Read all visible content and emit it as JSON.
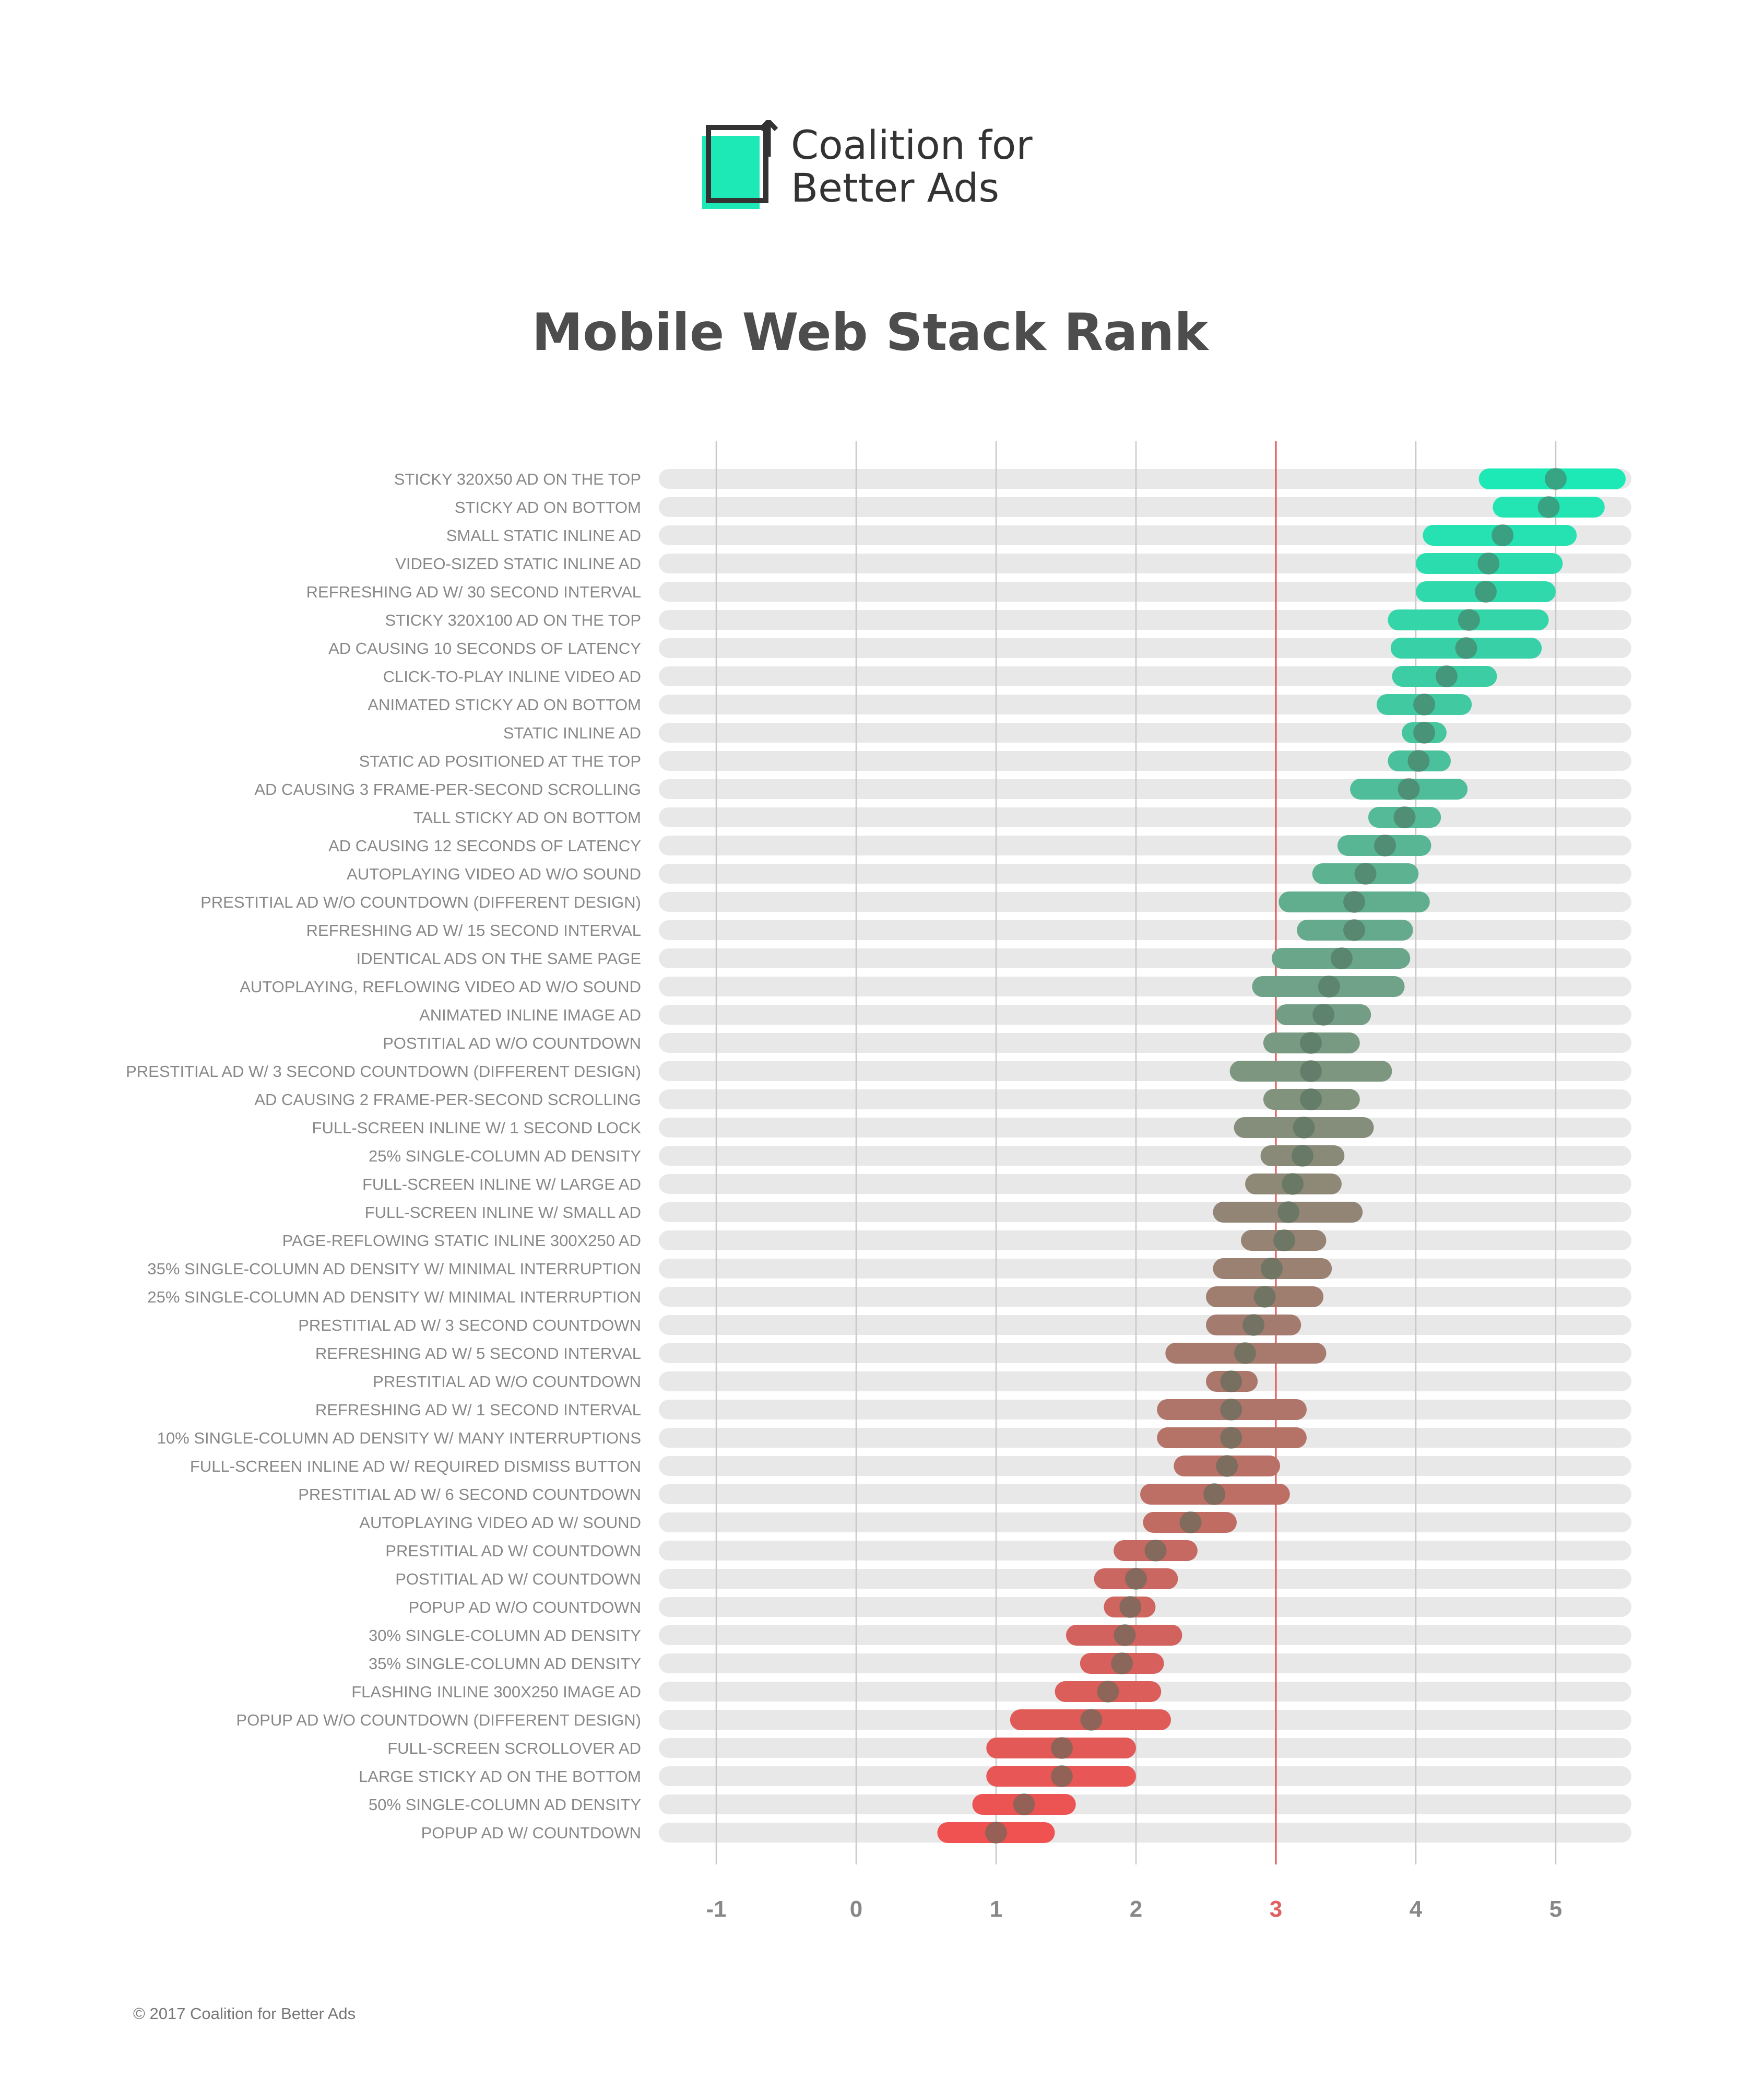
{
  "brand": {
    "name_line1": "Coalition for",
    "name_line2": "Better Ads",
    "logo_accent_color": "#1de9b6",
    "logo_frame_color": "#333333"
  },
  "page_title": "Mobile Web Stack Rank",
  "copyright": "© 2017 Coalition for Better Ads",
  "chart_data": {
    "type": "dot-range",
    "title": "Mobile Web Stack Rank",
    "xlabel": "",
    "ylabel": "",
    "xlim": [
      -1.45,
      5.5
    ],
    "x_ticks": [
      "-1",
      "0",
      "1",
      "2",
      "3",
      "4",
      "5"
    ],
    "highlight_tick": "3",
    "threshold": 3,
    "colors": {
      "top": "#1de9b6",
      "middle": "#8a8a78",
      "bottom": "#f05252",
      "track": "#e8e8e8",
      "gridline": "#c8c8c8",
      "threshold_line": "#e05555",
      "tick_text": "#888888",
      "highlight_tick_text": "#e06060",
      "label_text": "#888888",
      "dot": "#4d6b5a"
    },
    "grid": true,
    "rows": [
      {
        "label": "STICKY 320X50 AD ON THE TOP",
        "low": 4.45,
        "high": 5.5,
        "value": 5.0
      },
      {
        "label": "STICKY AD ON BOTTOM",
        "low": 4.55,
        "high": 5.35,
        "value": 4.95
      },
      {
        "label": "SMALL STATIC INLINE AD",
        "low": 4.05,
        "high": 5.15,
        "value": 4.62
      },
      {
        "label": "VIDEO-SIZED STATIC INLINE AD",
        "low": 4.0,
        "high": 5.05,
        "value": 4.52
      },
      {
        "label": "REFRESHING AD W/ 30 SECOND INTERVAL",
        "low": 4.0,
        "high": 5.0,
        "value": 4.5
      },
      {
        "label": "STICKY 320X100 AD ON THE TOP",
        "low": 3.8,
        "high": 4.95,
        "value": 4.38
      },
      {
        "label": "AD CAUSING 10 SECONDS OF LATENCY",
        "low": 3.82,
        "high": 4.9,
        "value": 4.36
      },
      {
        "label": "CLICK-TO-PLAY INLINE VIDEO AD",
        "low": 3.83,
        "high": 4.58,
        "value": 4.22
      },
      {
        "label": "ANIMATED STICKY AD ON BOTTOM",
        "low": 3.72,
        "high": 4.4,
        "value": 4.06
      },
      {
        "label": "STATIC INLINE AD",
        "low": 3.9,
        "high": 4.22,
        "value": 4.06
      },
      {
        "label": "STATIC AD POSITIONED AT THE TOP",
        "low": 3.8,
        "high": 4.25,
        "value": 4.02
      },
      {
        "label": "AD CAUSING 3 FRAME-PER-SECOND SCROLLING",
        "low": 3.53,
        "high": 4.37,
        "value": 3.95
      },
      {
        "label": "TALL STICKY AD ON BOTTOM",
        "low": 3.66,
        "high": 4.18,
        "value": 3.92
      },
      {
        "label": "AD CAUSING 12 SECONDS OF LATENCY",
        "low": 3.44,
        "high": 4.11,
        "value": 3.78
      },
      {
        "label": "AUTOPLAYING VIDEO AD W/O SOUND",
        "low": 3.26,
        "high": 4.02,
        "value": 3.64
      },
      {
        "label": "PRESTITIAL AD W/O COUNTDOWN (DIFFERENT DESIGN)",
        "low": 3.02,
        "high": 4.1,
        "value": 3.56
      },
      {
        "label": "REFRESHING AD W/ 15 SECOND INTERVAL",
        "low": 3.15,
        "high": 3.98,
        "value": 3.56
      },
      {
        "label": "IDENTICAL ADS ON THE SAME PAGE",
        "low": 2.97,
        "high": 3.96,
        "value": 3.47
      },
      {
        "label": "AUTOPLAYING, REFLOWING VIDEO AD W/O SOUND",
        "low": 2.83,
        "high": 3.92,
        "value": 3.38
      },
      {
        "label": "ANIMATED INLINE IMAGE AD",
        "low": 3.0,
        "high": 3.68,
        "value": 3.34
      },
      {
        "label": "POSTITIAL AD W/O COUNTDOWN",
        "low": 2.91,
        "high": 3.6,
        "value": 3.25
      },
      {
        "label": "PRESTITIAL AD W/ 3 SECOND COUNTDOWN (DIFFERENT DESIGN)",
        "low": 2.67,
        "high": 3.83,
        "value": 3.25
      },
      {
        "label": "AD CAUSING 2 FRAME-PER-SECOND SCROLLING",
        "low": 2.91,
        "high": 3.6,
        "value": 3.25
      },
      {
        "label": "FULL-SCREEN INLINE W/ 1 SECOND LOCK",
        "low": 2.7,
        "high": 3.7,
        "value": 3.2
      },
      {
        "label": "25% SINGLE-COLUMN AD DENSITY",
        "low": 2.89,
        "high": 3.49,
        "value": 3.19
      },
      {
        "label": "FULL-SCREEN INLINE W/ LARGE AD",
        "low": 2.78,
        "high": 3.47,
        "value": 3.12
      },
      {
        "label": "FULL-SCREEN INLINE W/ SMALL AD",
        "low": 2.55,
        "high": 3.62,
        "value": 3.09
      },
      {
        "label": "PAGE-REFLOWING STATIC INLINE 300X250 AD",
        "low": 2.75,
        "high": 3.36,
        "value": 3.06
      },
      {
        "label": "35% SINGLE-COLUMN AD DENSITY W/ MINIMAL INTERRUPTION",
        "low": 2.55,
        "high": 3.4,
        "value": 2.97
      },
      {
        "label": "25% SINGLE-COLUMN AD DENSITY W/ MINIMAL INTERRUPTION",
        "low": 2.5,
        "high": 3.34,
        "value": 2.92
      },
      {
        "label": "PRESTITIAL AD W/ 3 SECOND COUNTDOWN",
        "low": 2.5,
        "high": 3.18,
        "value": 2.84
      },
      {
        "label": "REFRESHING AD W/ 5 SECOND INTERVAL",
        "low": 2.21,
        "high": 3.36,
        "value": 2.78
      },
      {
        "label": "PRESTITIAL AD W/O COUNTDOWN",
        "low": 2.5,
        "high": 2.87,
        "value": 2.68
      },
      {
        "label": "REFRESHING AD W/ 1 SECOND INTERVAL",
        "low": 2.15,
        "high": 3.22,
        "value": 2.68
      },
      {
        "label": "10% SINGLE-COLUMN AD DENSITY W/ MANY INTERRUPTIONS",
        "low": 2.15,
        "high": 3.22,
        "value": 2.68
      },
      {
        "label": "FULL-SCREEN INLINE AD W/ REQUIRED DISMISS BUTTON",
        "low": 2.27,
        "high": 3.03,
        "value": 2.65
      },
      {
        "label": "PRESTITIAL AD W/ 6 SECOND COUNTDOWN",
        "low": 2.03,
        "high": 3.1,
        "value": 2.56
      },
      {
        "label": "AUTOPLAYING VIDEO AD W/ SOUND",
        "low": 2.05,
        "high": 2.72,
        "value": 2.39
      },
      {
        "label": "PRESTITIAL AD W/ COUNTDOWN",
        "low": 1.84,
        "high": 2.44,
        "value": 2.14
      },
      {
        "label": "POSTITIAL AD W/ COUNTDOWN",
        "low": 1.7,
        "high": 2.3,
        "value": 2.0
      },
      {
        "label": "POPUP AD W/O COUNTDOWN",
        "low": 1.77,
        "high": 2.14,
        "value": 1.96
      },
      {
        "label": "30% SINGLE-COLUMN AD DENSITY",
        "low": 1.5,
        "high": 2.33,
        "value": 1.92
      },
      {
        "label": "35% SINGLE-COLUMN AD DENSITY",
        "low": 1.6,
        "high": 2.2,
        "value": 1.9
      },
      {
        "label": "FLASHING INLINE 300X250 IMAGE AD",
        "low": 1.42,
        "high": 2.18,
        "value": 1.8
      },
      {
        "label": "POPUP AD W/O COUNTDOWN (DIFFERENT DESIGN)",
        "low": 1.1,
        "high": 2.25,
        "value": 1.68
      },
      {
        "label": "FULL-SCREEN SCROLLOVER AD",
        "low": 0.93,
        "high": 2.0,
        "value": 1.47
      },
      {
        "label": "LARGE STICKY AD ON THE BOTTOM",
        "low": 0.93,
        "high": 2.0,
        "value": 1.47
      },
      {
        "label": "50% SINGLE-COLUMN AD DENSITY",
        "low": 0.83,
        "high": 1.57,
        "value": 1.2
      },
      {
        "label": "POPUP AD W/ COUNTDOWN",
        "low": 0.58,
        "high": 1.42,
        "value": 1.0
      }
    ]
  }
}
